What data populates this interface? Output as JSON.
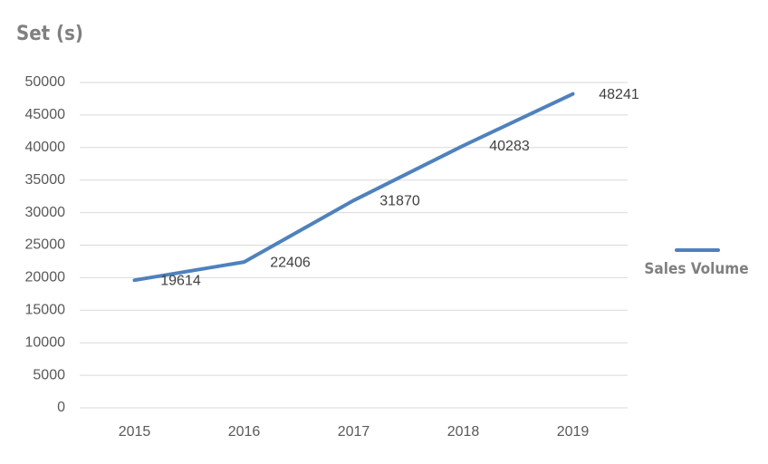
{
  "chart_data": {
    "type": "line",
    "title": "Set (s)",
    "categories": [
      "2015",
      "2016",
      "2017",
      "2018",
      "2019"
    ],
    "series": [
      {
        "name": "Sales Volume",
        "color": "#4f81bd",
        "values": [
          19614,
          22406,
          31870,
          40283,
          48241
        ]
      }
    ],
    "ylim": [
      0,
      50000
    ],
    "yticks": [
      0,
      5000,
      10000,
      15000,
      20000,
      25000,
      30000,
      35000,
      40000,
      45000,
      50000
    ],
    "grid": true,
    "legend": "right",
    "data_labels": true
  }
}
